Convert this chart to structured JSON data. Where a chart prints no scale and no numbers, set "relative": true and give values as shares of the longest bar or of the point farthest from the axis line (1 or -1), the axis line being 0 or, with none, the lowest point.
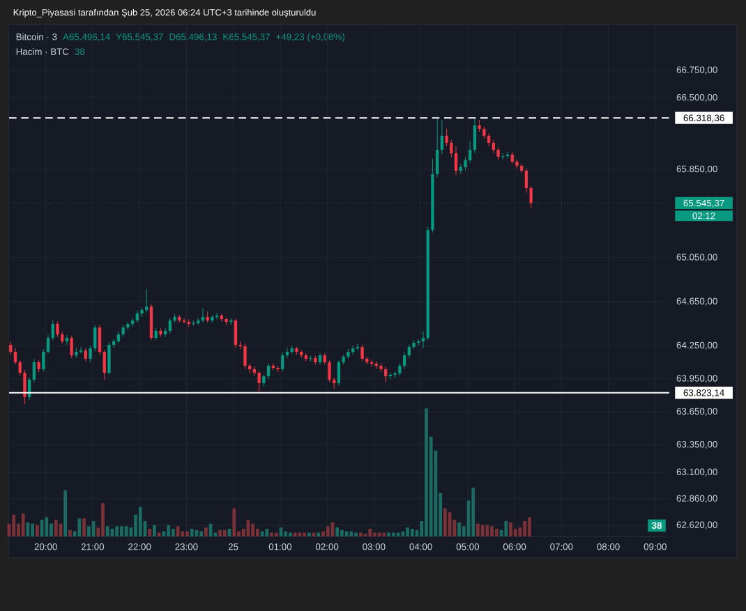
{
  "chart_data": [
    {
      "type": "candlestick",
      "title": "Kripto_Piyasasi tarafından Şub 25, 2026 06:24 UTC+3 tarihinde oluşturuldu",
      "subtitle": "Bitcoin · 3",
      "annotations": [
        "A65.496,14",
        "Y65.545,37",
        "D65.496,13",
        "K65.545,37",
        "+49,23 (+0,08%)",
        "02:12"
      ],
      "x": [
        "2026-02-24T19:15",
        "2026-02-24T19:21",
        "2026-02-24T19:27",
        "2026-02-24T19:33",
        "2026-02-24T19:39",
        "2026-02-24T19:45",
        "2026-02-24T19:51",
        "2026-02-24T19:57",
        "2026-02-24T20:03",
        "2026-02-24T20:09",
        "2026-02-24T20:15",
        "2026-02-24T20:21",
        "2026-02-24T20:27",
        "2026-02-24T20:33",
        "2026-02-24T20:39",
        "2026-02-24T20:45",
        "2026-02-24T20:51",
        "2026-02-24T20:57",
        "2026-02-24T21:03",
        "2026-02-24T21:09",
        "2026-02-24T21:15",
        "2026-02-24T21:21",
        "2026-02-24T21:27",
        "2026-02-24T21:33",
        "2026-02-24T21:39",
        "2026-02-24T21:45",
        "2026-02-24T21:51",
        "2026-02-24T21:57",
        "2026-02-24T22:03",
        "2026-02-24T22:09",
        "2026-02-24T22:15",
        "2026-02-24T22:21",
        "2026-02-24T22:27",
        "2026-02-24T22:33",
        "2026-02-24T22:39",
        "2026-02-24T22:45",
        "2026-02-24T22:51",
        "2026-02-24T22:57",
        "2026-02-24T23:03",
        "2026-02-24T23:09",
        "2026-02-24T23:15",
        "2026-02-24T23:21",
        "2026-02-24T23:27",
        "2026-02-24T23:33",
        "2026-02-24T23:39",
        "2026-02-24T23:45",
        "2026-02-24T23:51",
        "2026-02-24T23:57",
        "2026-02-25T00:03",
        "2026-02-25T00:09",
        "2026-02-25T00:15",
        "2026-02-25T00:21",
        "2026-02-25T00:27",
        "2026-02-25T00:33",
        "2026-02-25T00:39",
        "2026-02-25T00:45",
        "2026-02-25T00:51",
        "2026-02-25T00:57",
        "2026-02-25T01:03",
        "2026-02-25T01:09",
        "2026-02-25T01:15",
        "2026-02-25T01:21",
        "2026-02-25T01:27",
        "2026-02-25T01:33",
        "2026-02-25T01:39",
        "2026-02-25T01:45",
        "2026-02-25T01:51",
        "2026-02-25T01:57",
        "2026-02-25T02:03",
        "2026-02-25T02:09",
        "2026-02-25T02:15",
        "2026-02-25T02:21",
        "2026-02-25T02:27",
        "2026-02-25T02:33",
        "2026-02-25T02:39",
        "2026-02-25T02:45",
        "2026-02-25T02:51",
        "2026-02-25T02:57",
        "2026-02-25T03:03",
        "2026-02-25T03:09",
        "2026-02-25T03:15",
        "2026-02-25T03:21",
        "2026-02-25T03:27",
        "2026-02-25T03:33",
        "2026-02-25T03:39",
        "2026-02-25T03:45",
        "2026-02-25T03:51",
        "2026-02-25T03:57",
        "2026-02-25T04:03",
        "2026-02-25T04:09",
        "2026-02-25T04:15",
        "2026-02-25T04:21",
        "2026-02-25T04:27",
        "2026-02-25T04:33",
        "2026-02-25T04:39",
        "2026-02-25T04:45",
        "2026-02-25T04:51",
        "2026-02-25T04:57",
        "2026-02-25T05:03",
        "2026-02-25T05:09",
        "2026-02-25T05:15",
        "2026-02-25T05:21",
        "2026-02-25T05:27",
        "2026-02-25T05:33",
        "2026-02-25T05:39",
        "2026-02-25T05:45",
        "2026-02-25T05:51",
        "2026-02-25T05:57",
        "2026-02-25T06:03",
        "2026-02-25T06:09",
        "2026-02-25T06:15",
        "2026-02-25T06:21"
      ],
      "ohlc": [
        [
          64258,
          64290,
          64170,
          64195
        ],
        [
          64195,
          64230,
          64080,
          64100
        ],
        [
          64100,
          64120,
          63980,
          64005
        ],
        [
          64005,
          64030,
          63720,
          63784
        ],
        [
          63784,
          63960,
          63760,
          63942
        ],
        [
          63942,
          64130,
          63920,
          64100
        ],
        [
          64100,
          64120,
          64010,
          64037
        ],
        [
          64037,
          64220,
          64020,
          64195
        ],
        [
          64195,
          64350,
          64180,
          64321
        ],
        [
          64321,
          64480,
          64300,
          64448
        ],
        [
          64448,
          64470,
          64330,
          64353
        ],
        [
          64353,
          64380,
          64270,
          64290
        ],
        [
          64290,
          64350,
          64260,
          64321
        ],
        [
          64321,
          64340,
          64140,
          64163
        ],
        [
          64163,
          64230,
          64140,
          64195
        ],
        [
          64195,
          64240,
          64180,
          64207
        ],
        [
          64207,
          64230,
          64110,
          64132
        ],
        [
          64132,
          64250,
          64100,
          64226
        ],
        [
          64226,
          64440,
          64200,
          64416
        ],
        [
          64416,
          64440,
          64170,
          64195
        ],
        [
          64195,
          64210,
          63940,
          64005
        ],
        [
          64005,
          64280,
          63990,
          64258
        ],
        [
          64258,
          64310,
          64230,
          64290
        ],
        [
          64290,
          64380,
          64270,
          64353
        ],
        [
          64353,
          64440,
          64330,
          64416
        ],
        [
          64416,
          64470,
          64390,
          64448
        ],
        [
          64448,
          64500,
          64420,
          64479
        ],
        [
          64479,
          64570,
          64460,
          64543
        ],
        [
          64543,
          64600,
          64510,
          64574
        ],
        [
          64574,
          64764,
          64550,
          64606
        ],
        [
          64606,
          64630,
          64300,
          64321
        ],
        [
          64321,
          64410,
          64300,
          64385
        ],
        [
          64385,
          64410,
          64330,
          64353
        ],
        [
          64353,
          64410,
          64330,
          64385
        ],
        [
          64385,
          64500,
          64360,
          64479
        ],
        [
          64479,
          64540,
          64460,
          64511
        ],
        [
          64511,
          64530,
          64460,
          64479
        ],
        [
          64479,
          64500,
          64450,
          64467
        ],
        [
          64467,
          64490,
          64420,
          64448
        ],
        [
          64448,
          64480,
          64430,
          64454
        ],
        [
          64454,
          64500,
          64440,
          64479
        ],
        [
          64479,
          64590,
          64460,
          64511
        ],
        [
          64511,
          64560,
          64460,
          64479
        ],
        [
          64479,
          64530,
          64460,
          64511
        ],
        [
          64511,
          64550,
          64490,
          64524
        ],
        [
          64524,
          64540,
          64470,
          64492
        ],
        [
          64492,
          64510,
          64440,
          64467
        ],
        [
          64467,
          64500,
          64440,
          64479
        ],
        [
          64479,
          64500,
          64230,
          64258
        ],
        [
          64258,
          64290,
          64220,
          64245
        ],
        [
          64245,
          64270,
          64040,
          64068
        ],
        [
          64068,
          64090,
          64000,
          64037
        ],
        [
          64037,
          64060,
          63980,
          64005
        ],
        [
          64005,
          64020,
          63830,
          63910
        ],
        [
          63910,
          63990,
          63880,
          63973
        ],
        [
          63973,
          64090,
          63950,
          64068
        ],
        [
          64068,
          64090,
          64030,
          64049
        ],
        [
          64049,
          64070,
          64010,
          64037
        ],
        [
          64037,
          64190,
          64020,
          64163
        ],
        [
          64163,
          64230,
          64140,
          64195
        ],
        [
          64195,
          64250,
          64180,
          64226
        ],
        [
          64226,
          64240,
          64170,
          64195
        ],
        [
          64195,
          64210,
          64140,
          64163
        ],
        [
          64163,
          64180,
          64110,
          64132
        ],
        [
          64132,
          64160,
          64110,
          64138
        ],
        [
          64138,
          64160,
          64080,
          64100
        ],
        [
          64100,
          64180,
          64080,
          64163
        ],
        [
          64163,
          64180,
          64080,
          64100
        ],
        [
          64100,
          64120,
          63920,
          63942
        ],
        [
          63942,
          63960,
          63860,
          63910
        ],
        [
          63910,
          64120,
          63890,
          64100
        ],
        [
          64100,
          64170,
          64080,
          64151
        ],
        [
          64151,
          64220,
          64130,
          64195
        ],
        [
          64195,
          64250,
          64170,
          64226
        ],
        [
          64226,
          64270,
          64210,
          64239
        ],
        [
          64239,
          64260,
          64110,
          64132
        ],
        [
          64132,
          64150,
          64080,
          64100
        ],
        [
          64100,
          64120,
          64060,
          64087
        ],
        [
          64087,
          64110,
          64040,
          64068
        ],
        [
          64068,
          64090,
          64010,
          64037
        ],
        [
          64037,
          64060,
          63920,
          63973
        ],
        [
          63973,
          64010,
          63950,
          63986
        ],
        [
          63986,
          64020,
          63960,
          63999
        ],
        [
          63999,
          64090,
          63980,
          64068
        ],
        [
          64068,
          64190,
          64040,
          64163
        ],
        [
          64163,
          64260,
          64140,
          64239
        ],
        [
          64239,
          64300,
          64220,
          64277
        ],
        [
          64277,
          64310,
          64250,
          64290
        ],
        [
          64290,
          64380,
          64230,
          64321
        ],
        [
          64321,
          65330,
          64300,
          65302
        ],
        [
          65302,
          65950,
          65280,
          65808
        ],
        [
          65808,
          66310,
          65780,
          66029
        ],
        [
          66029,
          66300,
          65990,
          66156
        ],
        [
          66156,
          66220,
          66060,
          66092
        ],
        [
          66092,
          66120,
          65960,
          65997
        ],
        [
          65997,
          66060,
          65800,
          65839
        ],
        [
          65839,
          65900,
          65810,
          65871
        ],
        [
          65871,
          65960,
          65840,
          65934
        ],
        [
          65934,
          66110,
          65910,
          66029
        ],
        [
          66029,
          66318,
          66000,
          66250
        ],
        [
          66250,
          66300,
          66190,
          66219
        ],
        [
          66219,
          66240,
          66130,
          66156
        ],
        [
          66156,
          66180,
          66060,
          66092
        ],
        [
          66092,
          66120,
          66000,
          66029
        ],
        [
          66029,
          66050,
          65940,
          65966
        ],
        [
          65966,
          66000,
          65940,
          65972
        ],
        [
          65972,
          66010,
          65950,
          65985
        ],
        [
          65985,
          66010,
          65900,
          65921
        ],
        [
          65921,
          65940,
          65860,
          65884
        ],
        [
          65884,
          65900,
          65820,
          65839
        ],
        [
          65839,
          65860,
          65640,
          65681
        ],
        [
          65681,
          65700,
          65496,
          65545
        ]
      ],
      "colors": [
        "#f23645",
        "#f23645",
        "#f23645",
        "#f23645",
        "#089981",
        "#089981",
        "#f23645",
        "#089981",
        "#089981",
        "#089981",
        "#f23645",
        "#f23645",
        "#089981",
        "#f23645",
        "#089981",
        "#089981",
        "#f23645",
        "#089981",
        "#089981",
        "#f23645",
        "#f23645",
        "#089981",
        "#089981",
        "#089981",
        "#089981",
        "#089981",
        "#089981",
        "#089981",
        "#089981",
        "#089981",
        "#f23645",
        "#089981",
        "#f23645",
        "#089981",
        "#089981",
        "#089981",
        "#f23645",
        "#f23645",
        "#f23645",
        "#089981",
        "#089981",
        "#089981",
        "#f23645",
        "#089981",
        "#089981",
        "#f23645",
        "#f23645",
        "#089981",
        "#f23645",
        "#f23645",
        "#f23645",
        "#f23645",
        "#f23645",
        "#f23645",
        "#089981",
        "#089981",
        "#f23645",
        "#f23645",
        "#089981",
        "#089981",
        "#089981",
        "#f23645",
        "#f23645",
        "#f23645",
        "#089981",
        "#f23645",
        "#089981",
        "#f23645",
        "#f23645",
        "#f23645",
        "#089981",
        "#089981",
        "#089981",
        "#089981",
        "#089981",
        "#f23645",
        "#f23645",
        "#f23645",
        "#f23645",
        "#f23645",
        "#f23645",
        "#089981",
        "#089981",
        "#089981",
        "#089981",
        "#089981",
        "#089981",
        "#089981",
        "#089981",
        "#089981",
        "#089981",
        "#089981",
        "#089981",
        "#f23645",
        "#f23645",
        "#f23645",
        "#089981",
        "#089981",
        "#089981",
        "#089981",
        "#f23645",
        "#f23645",
        "#f23645",
        "#f23645",
        "#f23645",
        "#089981",
        "#089981",
        "#f23645",
        "#f23645",
        "#f23645",
        "#f23645",
        "#f23645"
      ],
      "xlim": [
        "2026-02-24T19:13",
        "2026-02-25T09:18"
      ],
      "ylim": [
        62519,
        67167
      ],
      "xticks": [
        {
          "value": "2026-02-24T20:00",
          "label": "20:00"
        },
        {
          "value": "2026-02-24T21:00",
          "label": "21:00"
        },
        {
          "value": "2026-02-24T22:00",
          "label": "22:00"
        },
        {
          "value": "2026-02-24T23:00",
          "label": "23:00"
        },
        {
          "value": "2026-02-25",
          "label": "25"
        },
        {
          "value": "2026-02-25T01:00",
          "label": "01:00"
        },
        {
          "value": "2026-02-25T02:00",
          "label": "02:00"
        },
        {
          "value": "2026-02-25T03:00",
          "label": "03:00"
        },
        {
          "value": "2026-02-25T04:00",
          "label": "04:00"
        },
        {
          "value": "2026-02-25T05:00",
          "label": "05:00"
        },
        {
          "value": "2026-02-25T06:00",
          "label": "06:00"
        },
        {
          "value": "2026-02-25T07:00",
          "label": "07:00"
        },
        {
          "value": "2026-02-25T08:00",
          "label": "08:00"
        },
        {
          "value": "2026-02-25T09:00",
          "label": "09:00"
        }
      ],
      "yticks": [
        {
          "value": 62620,
          "label": "62.620,00"
        },
        {
          "value": 62860,
          "label": "62.860,00"
        },
        {
          "value": 63100,
          "label": "63.100,00"
        },
        {
          "value": 63350,
          "label": "63.350,00"
        },
        {
          "value": 63650,
          "label": "63.650,00"
        },
        {
          "value": 63950,
          "label": "63.950,00"
        },
        {
          "value": 64250,
          "label": "64.250,00"
        },
        {
          "value": 64650,
          "label": "64.650,00"
        },
        {
          "value": 65050,
          "label": "65.050,00"
        },
        {
          "value": 65850,
          "label": "65.850,00"
        },
        {
          "value": 66500,
          "label": "66.500,00"
        },
        {
          "value": 66750,
          "label": "66.750,00"
        }
      ],
      "grid": true,
      "ref_lines": [
        {
          "axis": "y",
          "value": 66318.36,
          "label": "66.318,36",
          "color": "#ffffff",
          "line_style": "dashed"
        },
        {
          "axis": "y",
          "value": 63823.14,
          "label": "63.823,14",
          "color": "#ffffff",
          "line_style": "solid"
        },
        {
          "axis": "y",
          "value": 65545.37,
          "label": "65.545,37",
          "color": "#089981",
          "line_style": "dotted"
        }
      ]
    },
    {
      "type": "bar",
      "title": "Hacim · BTC",
      "relative": true,
      "annotations": [
        "38",
        "38"
      ],
      "categories": [
        null,
        null,
        null,
        null,
        null,
        null,
        null,
        null,
        null,
        null,
        null,
        null,
        null,
        null,
        null,
        null,
        null,
        null,
        null,
        null,
        null,
        null,
        null,
        null,
        null,
        null,
        null,
        null,
        null,
        null,
        null,
        null,
        null,
        null,
        null,
        null,
        null,
        null,
        null,
        null,
        null,
        null,
        null,
        null,
        null,
        null,
        null,
        null,
        null,
        null,
        null,
        null,
        null,
        null,
        null,
        null,
        null,
        null,
        null,
        null,
        null,
        null,
        null,
        null,
        null,
        null,
        null,
        null,
        null,
        null,
        null,
        null,
        null,
        null,
        null,
        null,
        null,
        null,
        null,
        null,
        null,
        null,
        null,
        null,
        null,
        null,
        null,
        null,
        null,
        null,
        null,
        null,
        null,
        null,
        null,
        null,
        null,
        null,
        null,
        null,
        null,
        null,
        null,
        null,
        null,
        null,
        null,
        null,
        null,
        null,
        null,
        null
      ],
      "values": [
        0.1,
        0.17,
        0.1,
        0.18,
        0.11,
        0.1,
        0.09,
        0.13,
        0.15,
        0.1,
        0.13,
        0.1,
        0.36,
        0.05,
        0.04,
        0.14,
        0.14,
        0.08,
        0.12,
        0.07,
        0.26,
        0.08,
        0.06,
        0.08,
        0.08,
        0.08,
        0.07,
        0.17,
        0.23,
        0.12,
        0.06,
        0.09,
        0.03,
        0.04,
        0.09,
        0.06,
        0.08,
        0.04,
        0.04,
        0.06,
        0.05,
        0.04,
        0.07,
        0.1,
        0.03,
        0.05,
        0.05,
        0.06,
        0.22,
        0.04,
        0.06,
        0.13,
        0.1,
        0.06,
        0.04,
        0.06,
        0.03,
        0.03,
        0.07,
        0.04,
        0.03,
        0.03,
        0.03,
        0.03,
        0.03,
        0.03,
        0.03,
        0.04,
        0.08,
        0.11,
        0.07,
        0.05,
        0.04,
        0.04,
        0.03,
        0.03,
        0.02,
        0.06,
        0.03,
        0.03,
        0.03,
        0.03,
        0.03,
        0.03,
        0.04,
        0.07,
        0.06,
        0.05,
        0.12,
        1,
        0.78,
        0.67,
        0.34,
        0.22,
        0.19,
        0.13,
        0.11,
        0.08,
        0.28,
        0.38,
        0.1,
        0.09,
        0.09,
        0.08,
        0.06,
        0.05,
        0.12,
        0.11,
        0.06,
        0.07,
        0.12,
        0.15
      ],
      "colors": [
        "#7a3238",
        "#7a3238",
        "#7a3238",
        "#7a3238",
        "#1c6b63",
        "#1c6b63",
        "#7a3238",
        "#1c6b63",
        "#1c6b63",
        "#1c6b63",
        "#7a3238",
        "#7a3238",
        "#1c6b63",
        "#7a3238",
        "#1c6b63",
        "#1c6b63",
        "#7a3238",
        "#1c6b63",
        "#1c6b63",
        "#7a3238",
        "#7a3238",
        "#1c6b63",
        "#1c6b63",
        "#1c6b63",
        "#1c6b63",
        "#1c6b63",
        "#1c6b63",
        "#1c6b63",
        "#1c6b63",
        "#1c6b63",
        "#7a3238",
        "#1c6b63",
        "#7a3238",
        "#1c6b63",
        "#1c6b63",
        "#1c6b63",
        "#7a3238",
        "#7a3238",
        "#7a3238",
        "#1c6b63",
        "#1c6b63",
        "#1c6b63",
        "#7a3238",
        "#1c6b63",
        "#1c6b63",
        "#7a3238",
        "#7a3238",
        "#1c6b63",
        "#7a3238",
        "#7a3238",
        "#7a3238",
        "#7a3238",
        "#7a3238",
        "#7a3238",
        "#1c6b63",
        "#1c6b63",
        "#7a3238",
        "#7a3238",
        "#1c6b63",
        "#1c6b63",
        "#1c6b63",
        "#7a3238",
        "#7a3238",
        "#7a3238",
        "#1c6b63",
        "#7a3238",
        "#1c6b63",
        "#7a3238",
        "#7a3238",
        "#7a3238",
        "#1c6b63",
        "#1c6b63",
        "#1c6b63",
        "#1c6b63",
        "#1c6b63",
        "#7a3238",
        "#7a3238",
        "#7a3238",
        "#7a3238",
        "#7a3238",
        "#7a3238",
        "#1c6b63",
        "#1c6b63",
        "#1c6b63",
        "#1c6b63",
        "#1c6b63",
        "#1c6b63",
        "#1c6b63",
        "#1c6b63",
        "#1c6b63",
        "#1c6b63",
        "#1c6b63",
        "#1c6b63",
        "#7a3238",
        "#7a3238",
        "#7a3238",
        "#1c6b63",
        "#1c6b63",
        "#1c6b63",
        "#1c6b63",
        "#7a3238",
        "#7a3238",
        "#7a3238",
        "#7a3238",
        "#7a3238",
        "#1c6b63",
        "#1c6b63",
        "#7a3238",
        "#7a3238",
        "#7a3238",
        "#7a3238",
        "#7a3238"
      ]
    }
  ]
}
